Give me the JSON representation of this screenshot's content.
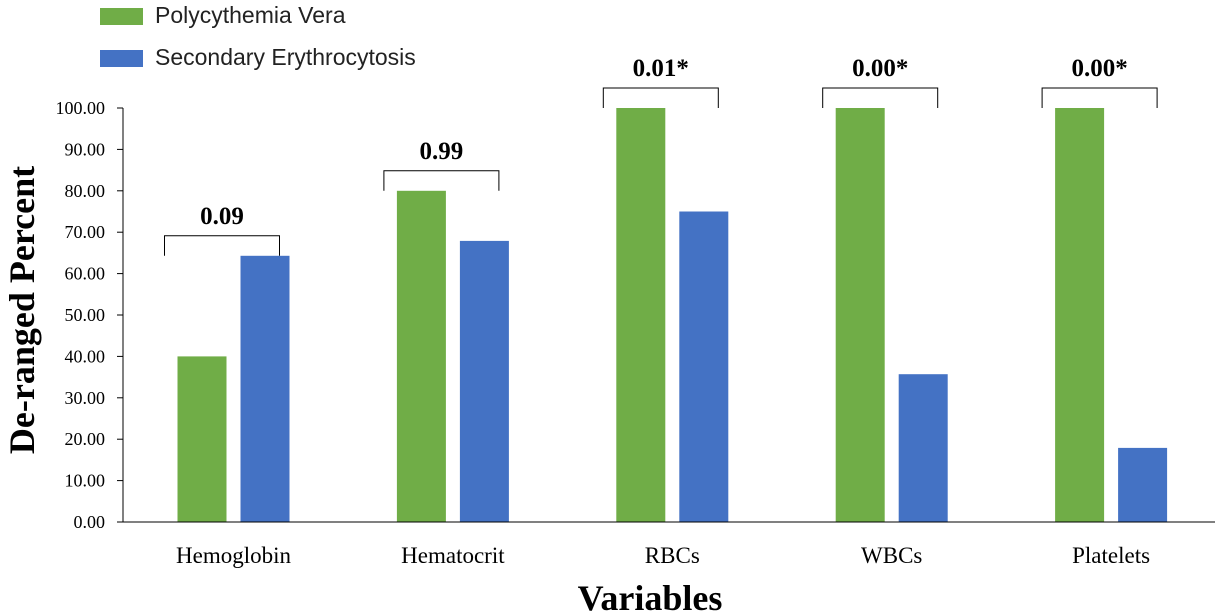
{
  "chart_data": {
    "type": "bar",
    "categories": [
      "Hemoglobin",
      "Hematocrit",
      "RBCs",
      "WBCs",
      "Platelets"
    ],
    "series": [
      {
        "name": "Polycythemia Vera",
        "color": "#70ad47",
        "values": [
          40,
          80,
          100,
          100,
          100
        ]
      },
      {
        "name": "Secondary Erythrocytosis",
        "color": "#4472c4",
        "values": [
          64.3,
          67.9,
          75,
          35.7,
          17.9
        ]
      }
    ],
    "p_values": [
      "0.09",
      "0.99",
      "0.01*",
      "0.00*",
      "0.00*"
    ],
    "xlabel": "Variables",
    "ylabel": "De-ranged Percent",
    "ylim": [
      0,
      100
    ],
    "yticks": [
      "0.00",
      "10.00",
      "20.00",
      "30.00",
      "40.00",
      "50.00",
      "60.00",
      "70.00",
      "80.00",
      "90.00",
      "100.00"
    ],
    "grid": false,
    "legend_position": "top-left"
  }
}
